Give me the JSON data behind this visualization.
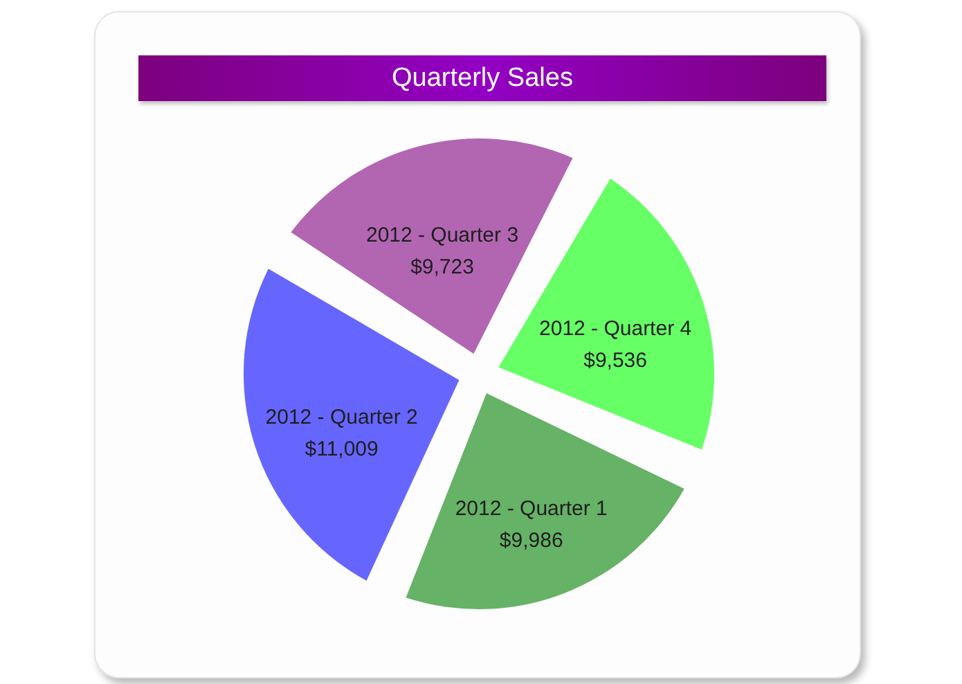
{
  "chart_data": {
    "type": "pie",
    "title": "Quarterly Sales",
    "categories": [
      "2012 - Quarter 1",
      "2012 - Quarter 2",
      "2012 - Quarter 3",
      "2012 - Quarter 4"
    ],
    "values": [
      9986,
      11009,
      9723,
      9536
    ],
    "value_labels": [
      "$9,986",
      "$11,009",
      "$9,723",
      "$9,536"
    ],
    "colors": [
      "#66b266",
      "#6666ff",
      "#b266b2",
      "#66ff66"
    ]
  }
}
